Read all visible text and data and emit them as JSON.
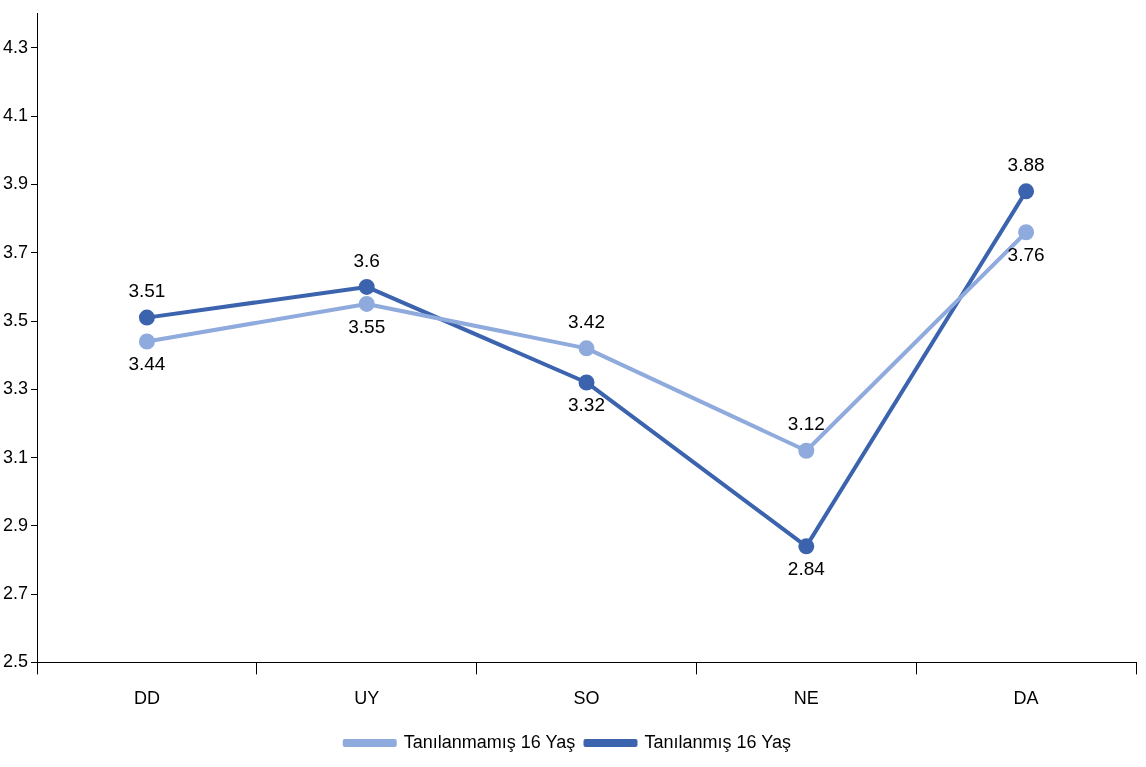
{
  "chart_data": {
    "type": "line",
    "categories": [
      "DD",
      "UY",
      "SO",
      "NE",
      "DA"
    ],
    "series": [
      {
        "name": "Tanılanmamış 16 Yaş",
        "color": "#8faadc",
        "values": [
          3.44,
          3.55,
          3.42,
          3.12,
          3.76
        ]
      },
      {
        "name": "Tanılanmış 16 Yaş",
        "color": "#3c63ad",
        "values": [
          3.51,
          3.6,
          3.32,
          2.84,
          3.88
        ]
      }
    ],
    "ylim": [
      2.5,
      4.4
    ],
    "yticks": [
      2.5,
      2.7,
      2.9,
      3.1,
      3.3,
      3.5,
      3.7,
      3.9,
      4.1,
      4.3
    ],
    "grid": false,
    "legend": "bottom",
    "marker": "circle",
    "line_style": "solid",
    "data_labels": true
  }
}
